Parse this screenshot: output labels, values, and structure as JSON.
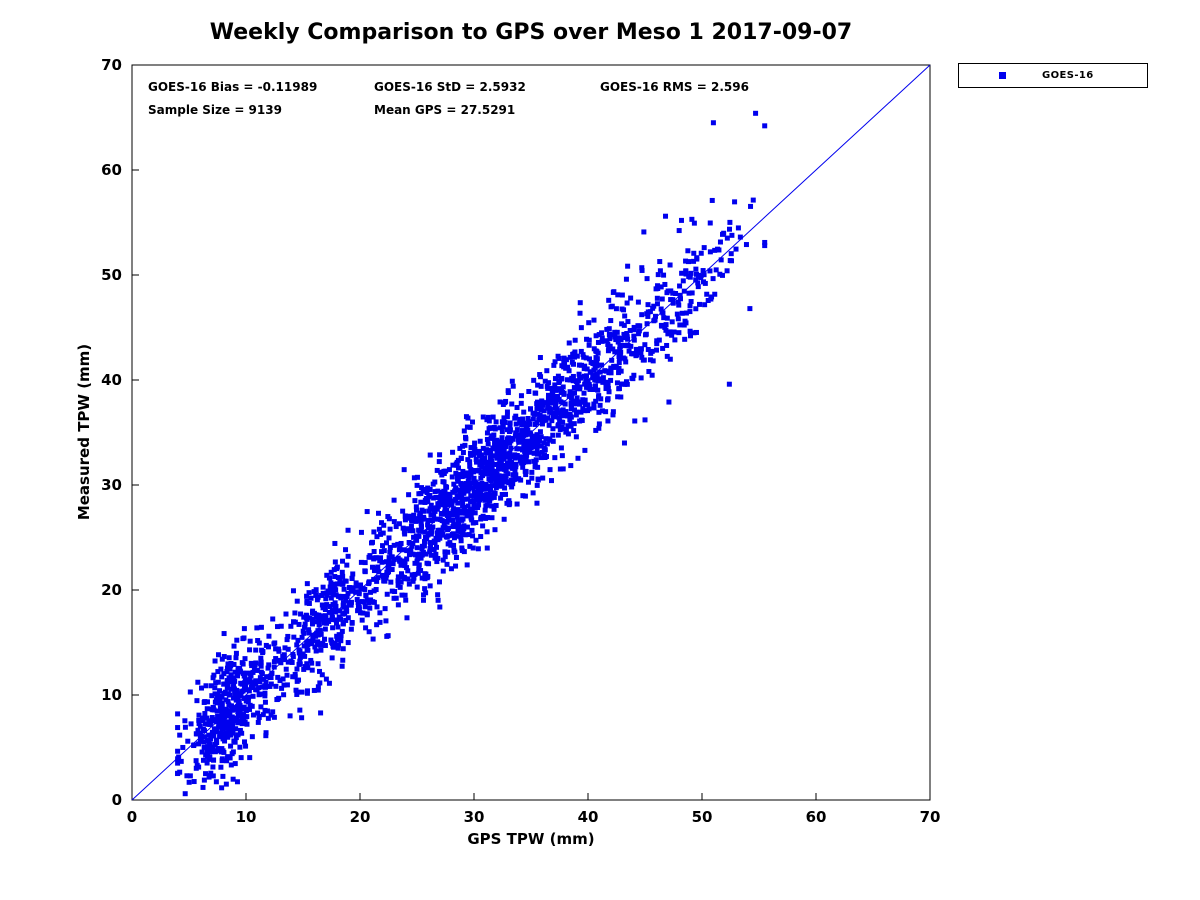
{
  "title": "Weekly Comparison to GPS over Meso 1 2017-09-07",
  "stats": {
    "bias_label": "GOES-16 Bias = -0.11989",
    "std_label": "GOES-16 StD = 2.5932",
    "rms_label": "GOES-16 RMS = 2.596",
    "sample_label": "Sample Size = 9139",
    "mean_label": "Mean GPS = 27.5291"
  },
  "legend": {
    "entries": [
      {
        "label": "GOES-16",
        "marker": "square",
        "marker_color": "#0000EE"
      }
    ]
  },
  "chart_data": {
    "type": "scatter",
    "title": "Weekly Comparison to GPS over Meso 1 2017-09-07",
    "xlabel": "GPS TPW (mm)",
    "ylabel": "Measured TPW (mm)",
    "xlim": [
      0,
      70
    ],
    "ylim": [
      0,
      70
    ],
    "xticks": [
      0,
      10,
      20,
      30,
      40,
      50,
      60,
      70
    ],
    "yticks": [
      0,
      10,
      20,
      30,
      40,
      50,
      60,
      70
    ],
    "grid": false,
    "legend_position": "outside-top-right",
    "reference_line": {
      "from": [
        0,
        0
      ],
      "to": [
        70,
        70
      ],
      "color": "#0000EE",
      "width": 1
    },
    "series": [
      {
        "name": "GOES-16",
        "marker": "square",
        "marker_size_px": 5,
        "color": "#0000EE",
        "n_points": 9139,
        "bias": -0.11989,
        "std": 2.5932,
        "rms": 2.596,
        "mean_gps": 27.5291,
        "relationship": "y approximately equals x plus bias with gaussian scatter of std",
        "x_observed_range": [
          4,
          55.5
        ],
        "y_observed_range": [
          6,
          65.5
        ],
        "clip": [
          4,
          55.5
        ],
        "x_mixture": [
          {
            "weight": 0.2,
            "mean": 8.5,
            "sd": 2.0
          },
          {
            "weight": 0.14,
            "mean": 17.0,
            "sd": 2.5
          },
          {
            "weight": 0.42,
            "mean": 30.0,
            "sd": 4.5
          },
          {
            "weight": 0.18,
            "mean": 39.5,
            "sd": 3.5
          },
          {
            "weight": 0.06,
            "mean": 48.0,
            "sd": 3.0
          }
        ],
        "render_points": 2400,
        "seed": 42,
        "outliers": [
          [
            51.0,
            64.5
          ],
          [
            54.7,
            65.4
          ],
          [
            50.9,
            57.1
          ],
          [
            46.8,
            55.6
          ],
          [
            48.2,
            55.2
          ],
          [
            44.9,
            54.1
          ],
          [
            53.9,
            52.9
          ],
          [
            55.5,
            52.8
          ],
          [
            52.2,
            50.4
          ],
          [
            54.2,
            46.8
          ],
          [
            52.4,
            39.6
          ],
          [
            47.1,
            37.9
          ],
          [
            45.0,
            36.2
          ],
          [
            43.2,
            34.0
          ],
          [
            49.3,
            44.5
          ]
        ]
      }
    ]
  }
}
